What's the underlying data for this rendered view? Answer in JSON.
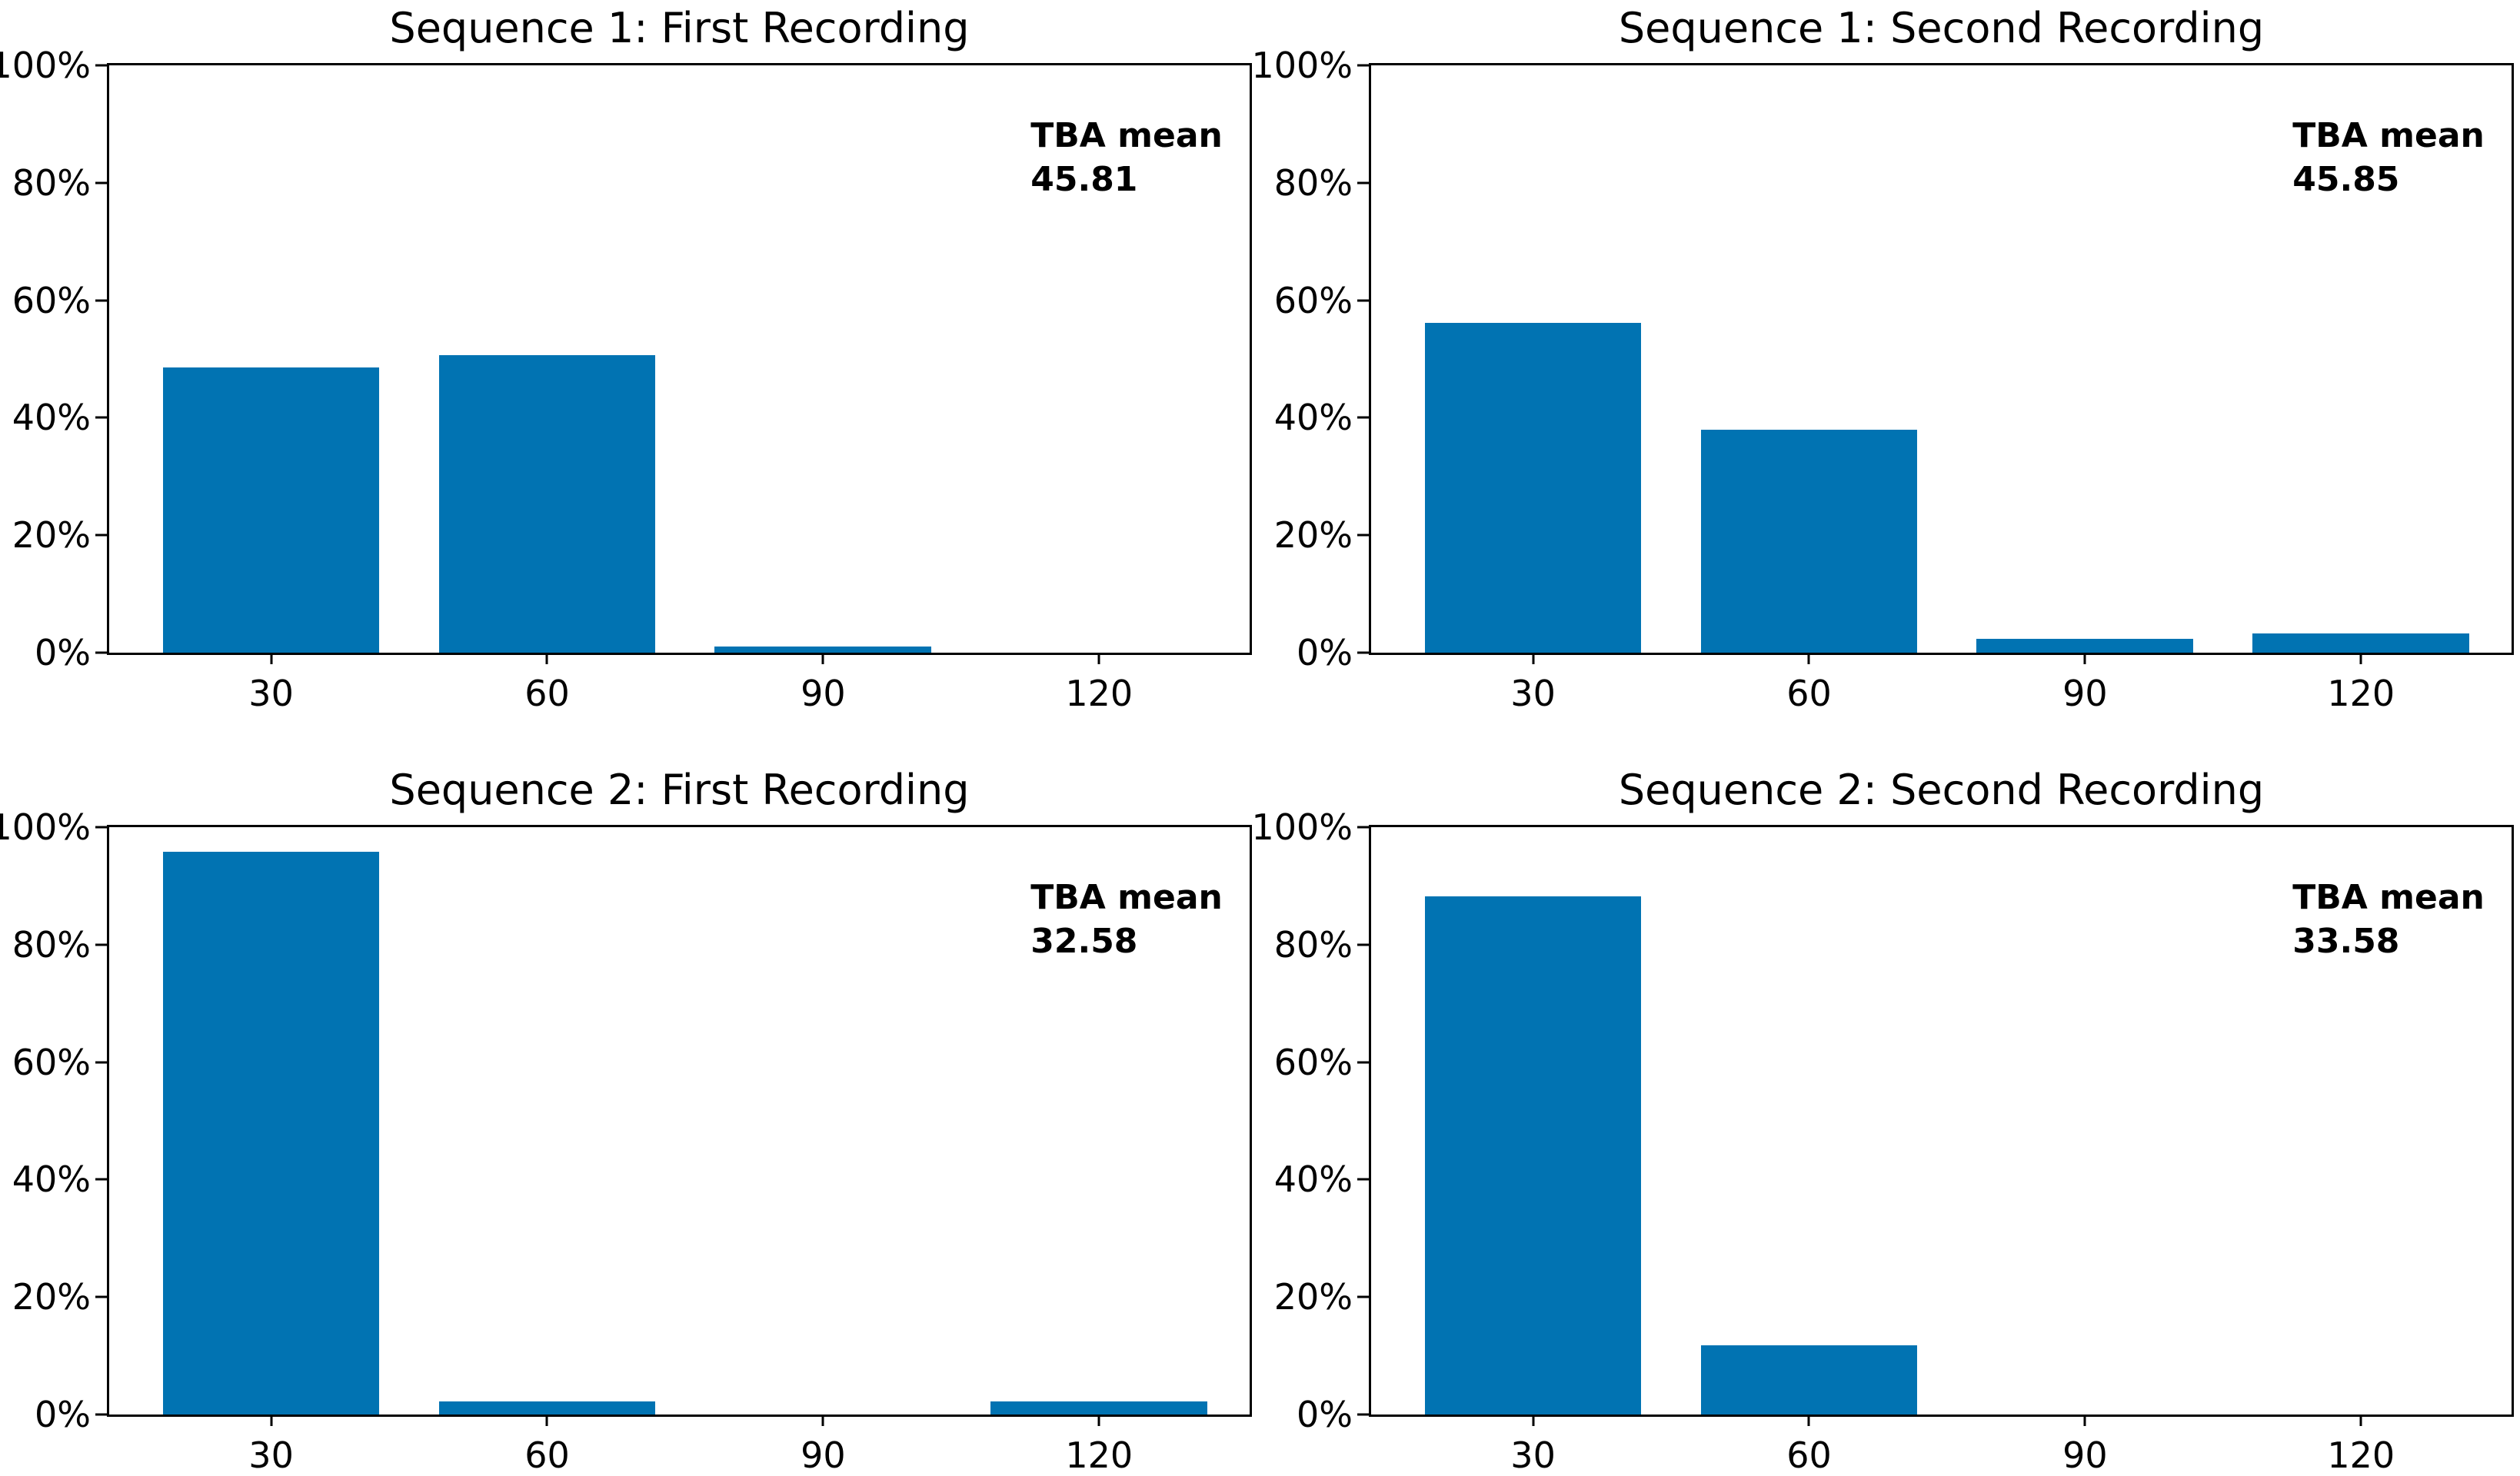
{
  "figure": {
    "background_color": "#ffffff",
    "bar_color": "#0173b2",
    "axis_color": "#000000",
    "text_color": "#000000"
  },
  "axes": {
    "categories": [
      "30",
      "60",
      "90",
      "120"
    ],
    "yticks": [
      "0%",
      "20%",
      "40%",
      "60%",
      "80%",
      "100%"
    ],
    "ylim": [
      0,
      100
    ],
    "grid": false,
    "legend": "none"
  },
  "chart_data": [
    {
      "type": "bar",
      "title": "Sequence 1: First Recording",
      "categories": [
        "30",
        "60",
        "90",
        "120"
      ],
      "values": [
        48.5,
        50.6,
        1.0,
        0
      ],
      "annotation_label": "TBA mean",
      "annotation_value": "45.81",
      "xlabel": "",
      "ylabel": "",
      "ylim": [
        0,
        100
      ]
    },
    {
      "type": "bar",
      "title": "Sequence 1: Second Recording",
      "categories": [
        "30",
        "60",
        "90",
        "120"
      ],
      "values": [
        56.1,
        37.9,
        2.4,
        3.3
      ],
      "annotation_label": "TBA mean",
      "annotation_value": "45.85",
      "xlabel": "",
      "ylabel": "",
      "ylim": [
        0,
        100
      ]
    },
    {
      "type": "bar",
      "title": "Sequence 2: First Recording",
      "categories": [
        "30",
        "60",
        "90",
        "120"
      ],
      "values": [
        95.8,
        2.2,
        0,
        2.2
      ],
      "annotation_label": "TBA mean",
      "annotation_value": "32.58",
      "xlabel": "",
      "ylabel": "",
      "ylim": [
        0,
        100
      ]
    },
    {
      "type": "bar",
      "title": "Sequence 2: Second Recording",
      "categories": [
        "30",
        "60",
        "90",
        "120"
      ],
      "values": [
        88.2,
        11.8,
        0,
        0
      ],
      "annotation_label": "TBA mean",
      "annotation_value": "33.58",
      "xlabel": "",
      "ylabel": "",
      "ylim": [
        0,
        100
      ]
    }
  ]
}
